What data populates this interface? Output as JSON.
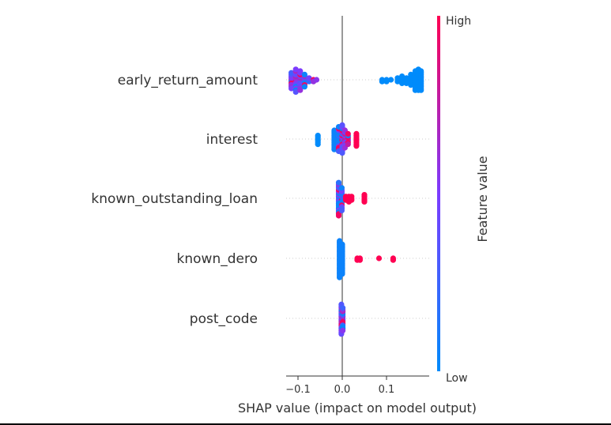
{
  "chart_data": {
    "type": "scatter",
    "subtype": "shap-beeswarm",
    "xlabel": "SHAP value (impact on model output)",
    "xlim": [
      -0.13,
      0.195
    ],
    "xticks": [
      -0.1,
      0.0,
      0.1
    ],
    "xtick_labels": [
      "−0.1",
      "0.0",
      "0.1"
    ],
    "colorbar": {
      "label": "Feature value",
      "high_label": "High",
      "low_label": "Low",
      "low_color": "#008bfb",
      "mid_color": "#7c3cff",
      "high_color": "#ff0052"
    },
    "features": [
      {
        "name": "early_return_amount",
        "bins": [
          [
            -0.115,
            10,
            0.5
          ],
          [
            -0.105,
            14,
            0.5
          ],
          [
            -0.095,
            12,
            0.5
          ],
          [
            -0.085,
            8,
            0.45
          ],
          [
            -0.075,
            3,
            0.4
          ],
          [
            -0.065,
            2,
            0.4
          ],
          [
            -0.058,
            1,
            0.35
          ],
          [
            0.09,
            2,
            0
          ],
          [
            0.1,
            2,
            0
          ],
          [
            0.11,
            1,
            0
          ],
          [
            0.125,
            3,
            0
          ],
          [
            0.135,
            5,
            0
          ],
          [
            0.145,
            4,
            0
          ],
          [
            0.155,
            7,
            0
          ],
          [
            0.165,
            12,
            0
          ],
          [
            0.172,
            13,
            0
          ],
          [
            0.178,
            12,
            0
          ]
        ]
      },
      {
        "name": "interest",
        "bins": [
          [
            -0.055,
            6,
            0
          ],
          [
            -0.018,
            12,
            0.05
          ],
          [
            -0.008,
            15,
            0.2
          ],
          [
            0.0,
            17,
            0.4
          ],
          [
            0.006,
            11,
            0.6
          ],
          [
            0.013,
            7,
            0.8
          ],
          [
            0.032,
            8,
            1
          ]
        ]
      },
      {
        "name": "known_outstanding_loan",
        "bins": [
          [
            -0.008,
            20,
            0.35
          ],
          [
            -0.001,
            14,
            0.3
          ],
          [
            0.008,
            3,
            1
          ],
          [
            0.015,
            4,
            1
          ],
          [
            0.021,
            3,
            1
          ],
          [
            0.05,
            5,
            1
          ]
        ]
      },
      {
        "name": "known_dero",
        "bins": [
          [
            -0.006,
            22,
            0.05
          ],
          [
            0.0,
            18,
            0.05
          ],
          [
            0.034,
            2,
            1
          ],
          [
            0.04,
            2,
            1
          ],
          [
            0.083,
            1,
            1
          ],
          [
            0.115,
            2,
            1
          ]
        ]
      },
      {
        "name": "post_code",
        "bins": [
          [
            -0.002,
            18,
            0.45
          ],
          [
            0.001,
            14,
            0.5
          ]
        ]
      }
    ]
  }
}
